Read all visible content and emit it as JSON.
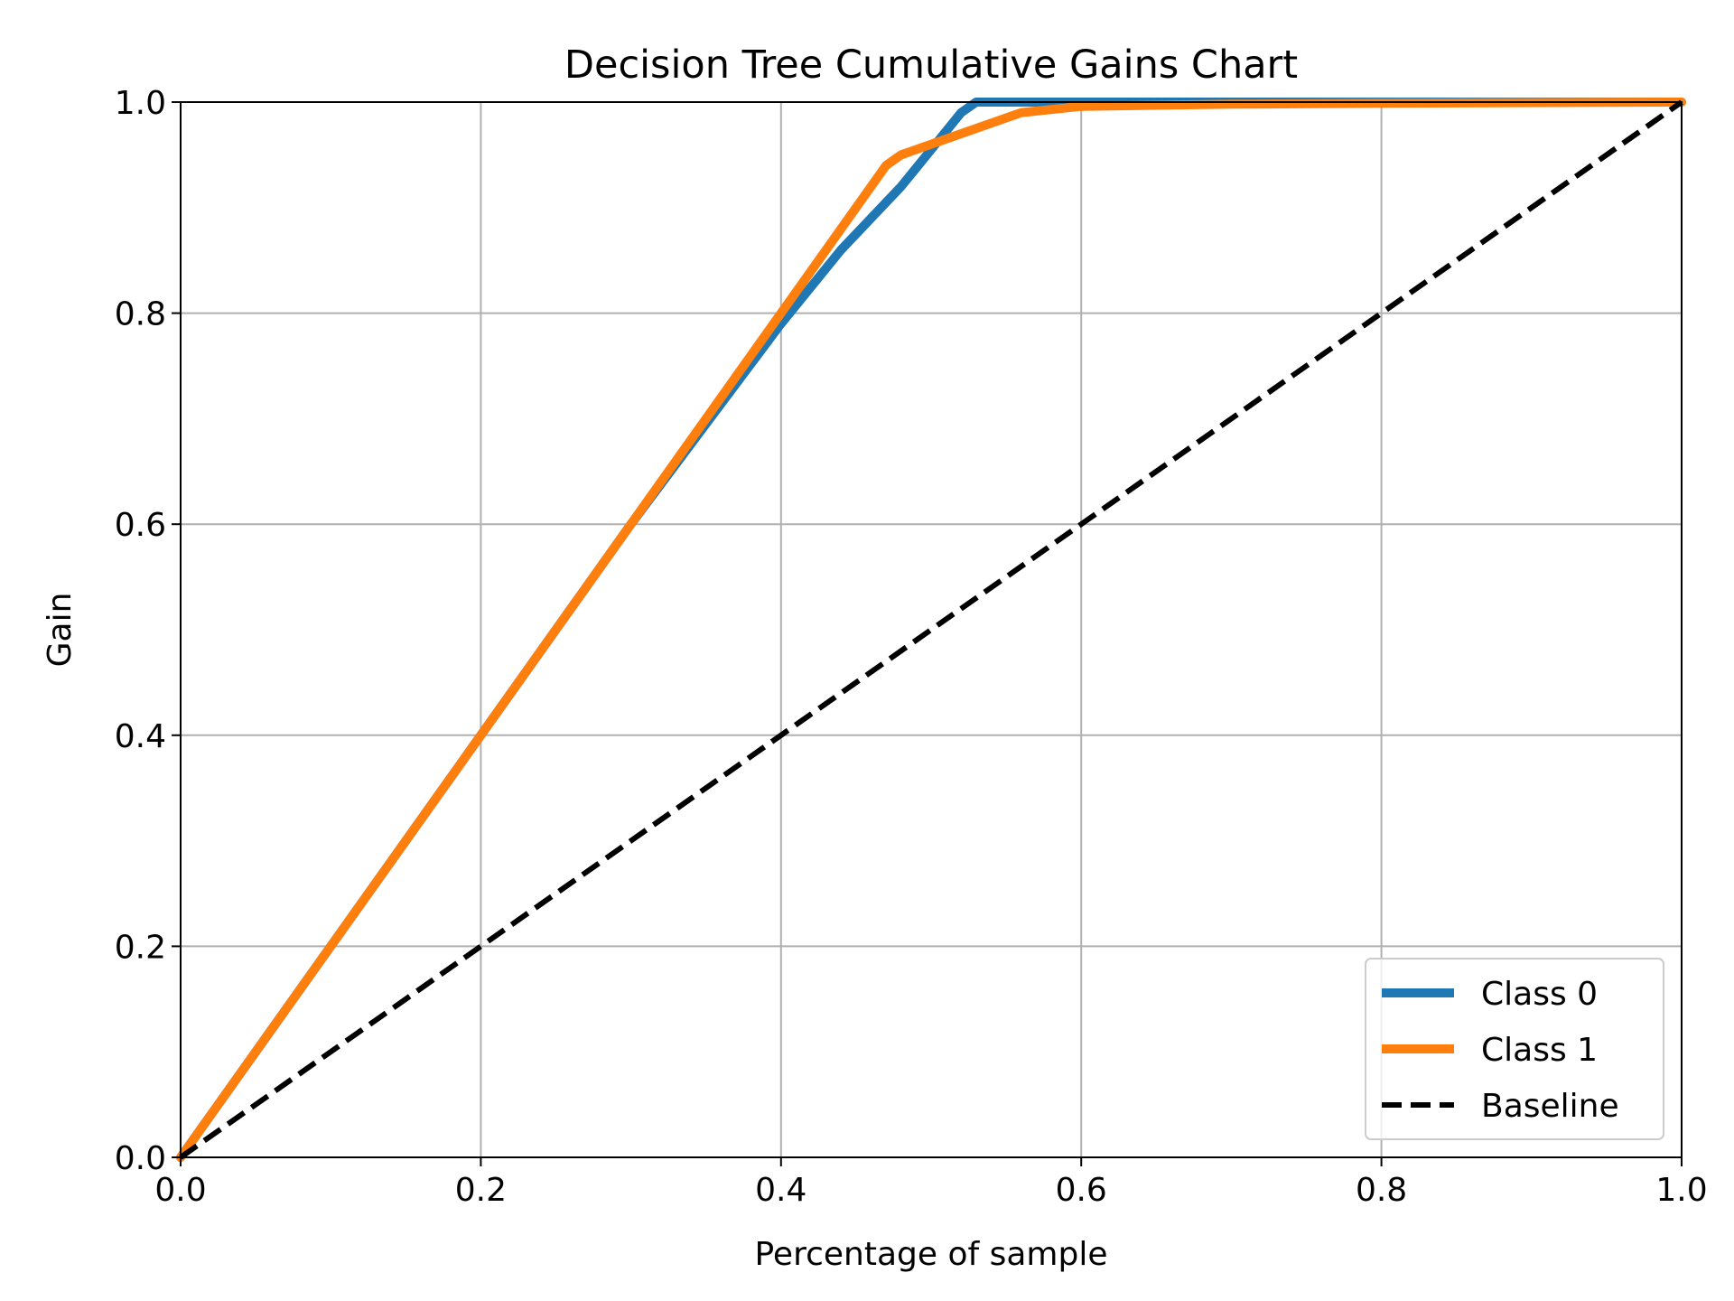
{
  "chart_data": {
    "type": "line",
    "title": "Decision Tree Cumulative Gains Chart",
    "xlabel": "Percentage of sample",
    "ylabel": "Gain",
    "xlim": [
      0.0,
      1.0
    ],
    "ylim": [
      0.0,
      1.0
    ],
    "grid": true,
    "legend_position": "lower-right",
    "xticks": [
      "0.0",
      "0.2",
      "0.4",
      "0.6",
      "0.8",
      "1.0"
    ],
    "yticks": [
      "0.0",
      "0.2",
      "0.4",
      "0.6",
      "0.8",
      "1.0"
    ],
    "series": [
      {
        "name": "Class 0",
        "color": "#1f77b4",
        "style": "solid",
        "x": [
          0.0,
          0.1,
          0.2,
          0.3,
          0.4,
          0.44,
          0.48,
          0.5,
          0.52,
          0.53,
          0.6,
          0.8,
          1.0
        ],
        "y": [
          0.0,
          0.2,
          0.4,
          0.6,
          0.79,
          0.86,
          0.92,
          0.955,
          0.99,
          1.0,
          1.0,
          1.0,
          1.0
        ]
      },
      {
        "name": "Class 1",
        "color": "#ff7f0e",
        "style": "solid",
        "x": [
          0.0,
          0.1,
          0.2,
          0.3,
          0.4,
          0.44,
          0.47,
          0.48,
          0.5,
          0.52,
          0.56,
          0.6,
          0.7,
          0.8,
          1.0
        ],
        "y": [
          0.0,
          0.2,
          0.4,
          0.6,
          0.8,
          0.88,
          0.94,
          0.95,
          0.96,
          0.97,
          0.99,
          0.996,
          0.998,
          0.999,
          1.0
        ]
      },
      {
        "name": "Baseline",
        "color": "#000000",
        "style": "dashed",
        "x": [
          0.0,
          1.0
        ],
        "y": [
          0.0,
          1.0
        ]
      }
    ]
  }
}
